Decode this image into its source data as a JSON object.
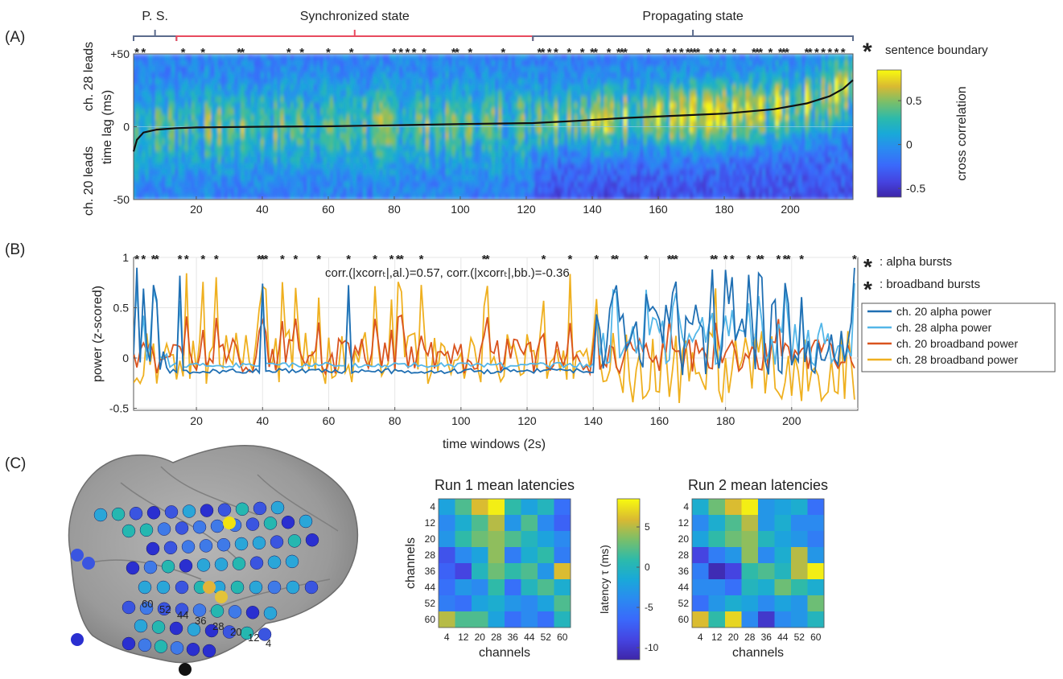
{
  "panel_labels": {
    "A": "(A)",
    "B": "(B)",
    "C": "(C)"
  },
  "chart_data": [
    {
      "type": "heatmap",
      "panel": "A",
      "ylabel": "time lag (ms)",
      "ylabel_top": "ch. 28 leads",
      "ylabel_bottom": "ch. 20 leads",
      "x_ticks": [
        20,
        40,
        60,
        80,
        100,
        120,
        140,
        160,
        180,
        200
      ],
      "y_ticks": [
        {
          "value": 50,
          "label": "+50"
        },
        {
          "value": 0,
          "label": "0"
        },
        {
          "value": -50,
          "label": "-50"
        }
      ],
      "xlim": [
        1,
        219
      ],
      "ylim": [
        -50,
        50
      ],
      "state_labels": [
        {
          "label": "P. S.",
          "from": 1,
          "to": 14,
          "color": "#5b6b8c"
        },
        {
          "label": "Synchronized state",
          "from": 14,
          "to": 122,
          "color": "#e84a5f"
        },
        {
          "label": "Propagating state",
          "from": 122,
          "to": 219,
          "color": "#5b6b8c"
        }
      ],
      "sentence_boundaries": [
        2,
        4,
        16,
        22,
        33,
        34,
        48,
        52,
        60,
        67,
        80,
        82,
        84,
        86,
        89,
        98,
        99,
        103,
        113,
        124,
        125,
        127,
        129,
        133,
        137,
        140,
        141,
        145,
        148,
        149,
        150,
        157,
        163,
        165,
        167,
        169,
        170,
        171,
        172,
        176,
        178,
        180,
        183,
        189,
        190,
        191,
        194,
        197,
        198,
        199,
        205,
        206,
        208,
        210,
        212,
        214,
        216
      ],
      "lag_curve": {
        "x": [
          1,
          2,
          4,
          8,
          14,
          20,
          40,
          60,
          80,
          100,
          122,
          135,
          150,
          165,
          180,
          195,
          205,
          212,
          216,
          219
        ],
        "y": [
          -17,
          -9,
          -4,
          -2,
          -1,
          -0.5,
          0,
          0.3,
          1,
          1.8,
          2.5,
          4,
          6,
          7.5,
          9,
          12,
          16,
          21,
          26,
          32
        ]
      },
      "legend_text": "sentence boundary",
      "legend_symbol": "*",
      "colorbar": {
        "label": "cross correlation",
        "range": [
          -0.6,
          0.85
        ],
        "ticks": [
          0.5,
          0,
          -0.5
        ]
      }
    },
    {
      "type": "line",
      "panel": "B",
      "xlabel": "time windows (2s)",
      "ylabel": "power (z-scored)",
      "xlim": [
        1,
        220
      ],
      "ylim": [
        -0.52,
        1.0
      ],
      "x_ticks": [
        20,
        40,
        60,
        80,
        100,
        120,
        140,
        160,
        180,
        200
      ],
      "y_ticks": [
        1,
        0.5,
        0,
        -0.5
      ],
      "annotation": "corr.(|xcorrₜ|,al.)=0.57, corr.(|xcorrₜ|,bb.)=-0.36",
      "alpha_bursts": [
        2,
        4,
        7,
        8,
        15,
        40,
        66,
        146,
        147,
        156,
        164,
        165,
        176,
        180,
        182,
        187,
        190,
        191,
        198,
        199,
        203,
        219
      ],
      "broadband_bursts": [
        17,
        22,
        26,
        39,
        40,
        41,
        46,
        50,
        57,
        74,
        79,
        81,
        82,
        88,
        107,
        108,
        125,
        133,
        141,
        163,
        177,
        196
      ],
      "burst_legend": [
        {
          "label": "alpha bursts",
          "color": "#1f2fd0"
        },
        {
          "label": "broadband bursts",
          "color": "#e0251f"
        }
      ],
      "series": [
        {
          "name": "ch. 20 alpha power",
          "color": "#1f6fb3",
          "key": "a20"
        },
        {
          "name": "ch. 28 alpha power",
          "color": "#53b6e8",
          "key": "a28"
        },
        {
          "name": "ch. 20 broadband power",
          "color": "#d9531e",
          "key": "b20"
        },
        {
          "name": "ch. 28 broadband power",
          "color": "#efb020",
          "key": "b28"
        }
      ]
    },
    {
      "type": "heatmap",
      "panel": "C-run1",
      "title": "Run 1 mean latencies",
      "xlabel": "channels",
      "ylabel": "channels",
      "labels": [
        "4",
        "12",
        "20",
        "28",
        "36",
        "44",
        "52",
        "60"
      ],
      "values": [
        [
          -2,
          2,
          6,
          8,
          1,
          -2,
          0,
          -6
        ],
        [
          -4,
          -1,
          2,
          5,
          -3,
          2,
          -4,
          -7
        ],
        [
          -3,
          1,
          3,
          4,
          2,
          0,
          -2,
          -4
        ],
        [
          -8,
          -4,
          -2,
          4,
          -5,
          -1,
          1,
          -5
        ],
        [
          -7,
          -9,
          0,
          3,
          1,
          2,
          -3,
          6
        ],
        [
          -6,
          -3,
          -4,
          1,
          -6,
          0,
          2,
          -1
        ],
        [
          -5,
          -6,
          -2,
          -1,
          -3,
          -4,
          -2,
          2
        ],
        [
          5,
          2,
          2,
          -2,
          -6,
          -4,
          -6,
          0
        ]
      ]
    },
    {
      "type": "heatmap",
      "panel": "C-run2",
      "title": "Run 2 mean latencies",
      "xlabel": "channels",
      "ylabel": "",
      "labels": [
        "4",
        "12",
        "20",
        "28",
        "36",
        "44",
        "52",
        "60"
      ],
      "values": [
        [
          -1,
          3,
          6,
          8,
          -3,
          -2,
          -1,
          -6
        ],
        [
          -4,
          -1,
          2,
          5,
          -3,
          -1,
          -4,
          -4
        ],
        [
          -2,
          1,
          3,
          4,
          0,
          -2,
          -3,
          -5
        ],
        [
          -9,
          -5,
          -3,
          4,
          -4,
          -1,
          5,
          -3
        ],
        [
          -5,
          -11,
          -9,
          1,
          2,
          0,
          5,
          8
        ],
        [
          -4,
          -4,
          -6,
          0,
          -1,
          3,
          1,
          -1
        ],
        [
          -6,
          -3,
          -1,
          -2,
          -4,
          -2,
          -3,
          3
        ],
        [
          6,
          1,
          7,
          -4,
          -10,
          -4,
          -3,
          0
        ]
      ]
    },
    {
      "type": "colorbar",
      "panel": "C",
      "label": "latency τ (ms)",
      "range": [
        -11.5,
        8.5
      ],
      "ticks": [
        5,
        0,
        -5,
        -10
      ]
    }
  ],
  "brain": {
    "channel_labels": [
      "60",
      "52",
      "44",
      "36",
      "28",
      "20",
      "12",
      "4"
    ]
  }
}
